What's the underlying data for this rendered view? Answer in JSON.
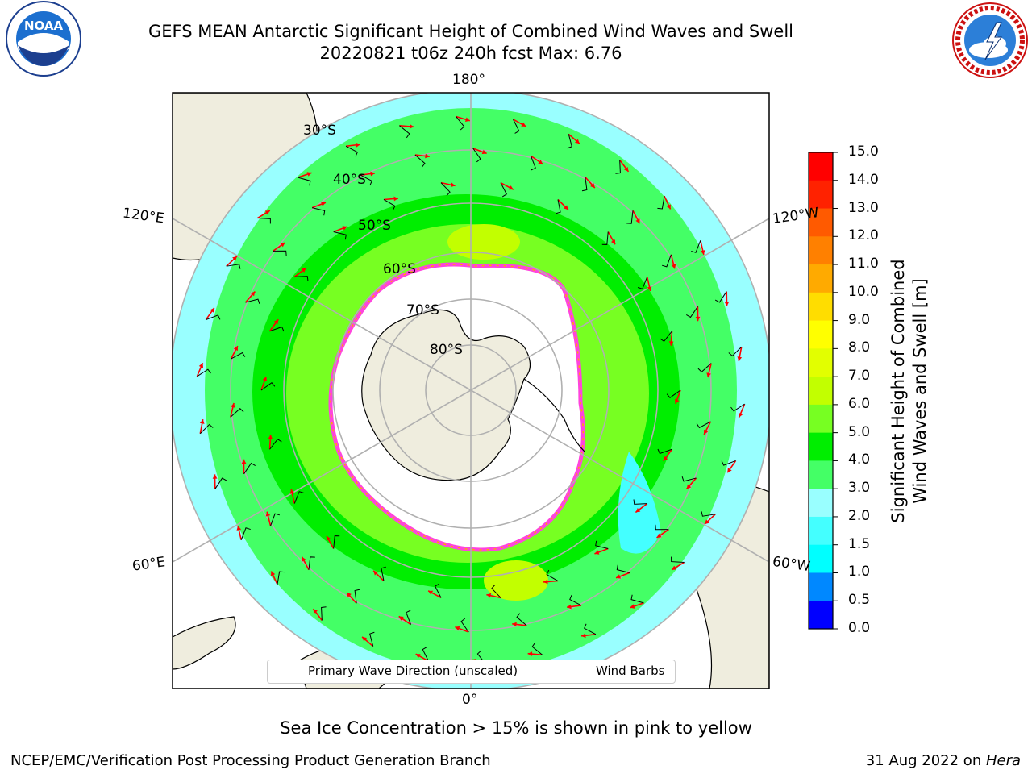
{
  "header": {
    "title_line1": "GEFS MEAN Antarctic Significant Height of Combined Wind Waves and Swell",
    "title_line2": "20220821 t06z 240h fcst   Max: 6.76"
  },
  "logos": {
    "left": "NOAA",
    "right": "NATIONAL WEATHER SERVICE"
  },
  "map": {
    "projection": "south polar stereographic",
    "longitude_labels": [
      "180°",
      "120°E",
      "120°W",
      "60°E",
      "60°W",
      "0°"
    ],
    "latitude_labels": [
      "30°S",
      "40°S",
      "50°S",
      "60°S",
      "70°S",
      "80°S"
    ],
    "colors": {
      "land": "#efedde",
      "ice_edge": "#ff44dd",
      "wave_arrow": "#ff0000",
      "wind_barb": "#000000"
    }
  },
  "colorbar": {
    "title_line1": "Significant Height of Combined",
    "title_line2": "Wind Waves and Swell [m]",
    "ticks": [
      "15.0",
      "14.0",
      "13.0",
      "12.0",
      "11.0",
      "10.0",
      "9.0",
      "8.0",
      "7.0",
      "6.0",
      "5.0",
      "4.0",
      "3.0",
      "2.0",
      "1.5",
      "1.0",
      "0.5",
      "0.0"
    ],
    "colors": [
      "#ff0000",
      "#ff2200",
      "#ff5a00",
      "#ff8000",
      "#ffaa00",
      "#ffdd00",
      "#ffff00",
      "#e2ff00",
      "#c2ff00",
      "#77ff22",
      "#00ee00",
      "#44ff66",
      "#99ffff",
      "#44ffff",
      "#00ffff",
      "#0088ff",
      "#0000ff"
    ]
  },
  "legend": {
    "wave_label": "Primary Wave Direction (unscaled)",
    "wind_label": "Wind Barbs"
  },
  "footer": {
    "note": "Sea Ice Concentration > 15% is shown in pink to yellow",
    "credit": "NCEP/EMC/Verification Post Processing Product Generation Branch",
    "date_prefix": "31 Aug 2022 on ",
    "machine": "Hera"
  }
}
